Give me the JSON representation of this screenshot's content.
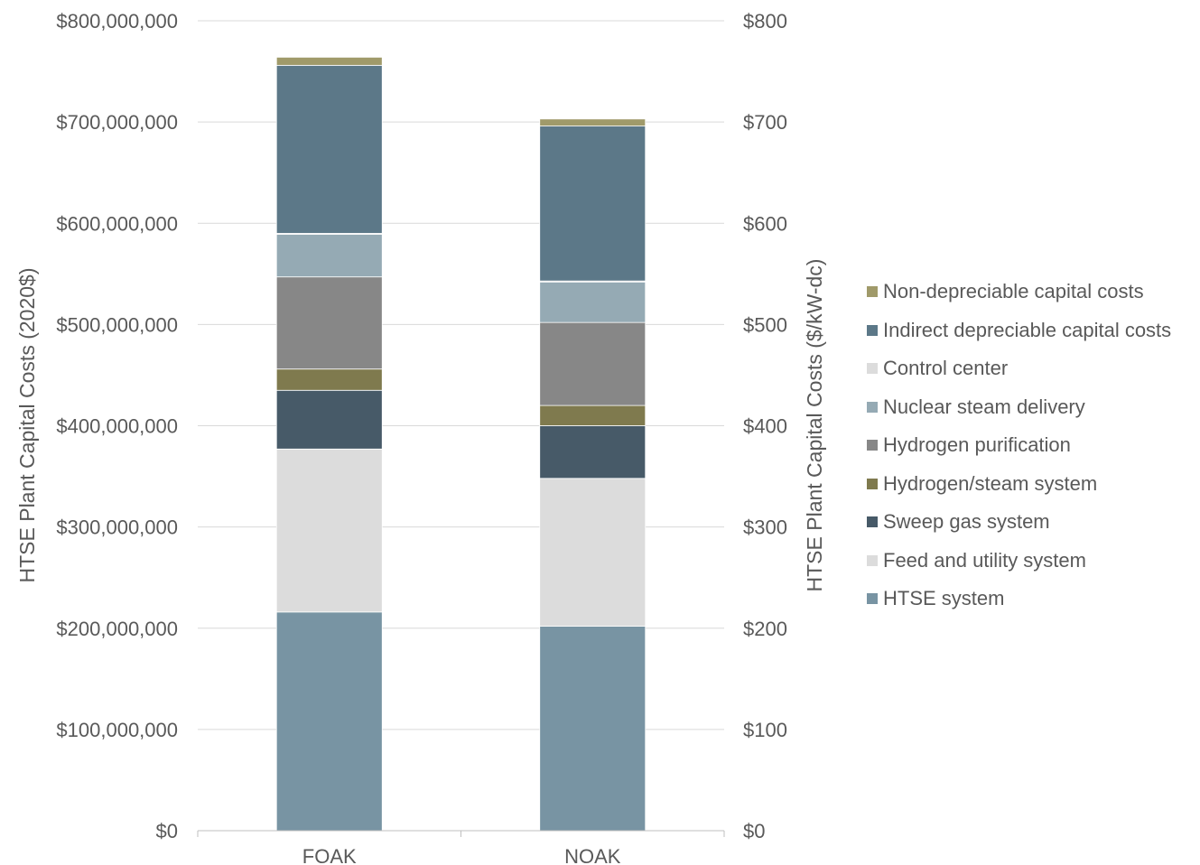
{
  "chart_data": {
    "type": "bar",
    "stacked": true,
    "categories": [
      "FOAK",
      "NOAK"
    ],
    "series": [
      {
        "name": "HTSE system",
        "color": "#7894a3",
        "values": [
          216000000,
          202000000
        ]
      },
      {
        "name": "Feed and utility system",
        "color": "#dcdcdc",
        "values": [
          161000000,
          146000000
        ]
      },
      {
        "name": "Sweep gas system",
        "color": "#475a68",
        "values": [
          58000000,
          52000000
        ]
      },
      {
        "name": "Hydrogen/steam system",
        "color": "#7f7a4e",
        "values": [
          21000000,
          20000000
        ]
      },
      {
        "name": "Hydrogen purification",
        "color": "#878787",
        "values": [
          91000000,
          82000000
        ]
      },
      {
        "name": "Nuclear steam delivery",
        "color": "#95aab4",
        "values": [
          42000000,
          40000000
        ]
      },
      {
        "name": "Control center",
        "color": "#dcdcdc",
        "values": [
          1000000,
          1000000
        ]
      },
      {
        "name": "Indirect depreciable capital costs",
        "color": "#5c7888",
        "values": [
          166000000,
          153000000
        ]
      },
      {
        "name": "Non-depreciable capital costs",
        "color": "#a09a6a",
        "values": [
          8000000,
          7000000
        ]
      }
    ],
    "ylabel": "HTSE Plant Capital Costs (2020$)",
    "ylim": [
      0,
      800000000
    ],
    "yticks": [
      "$0",
      "$100,000,000",
      "$200,000,000",
      "$300,000,000",
      "$400,000,000",
      "$500,000,000",
      "$600,000,000",
      "$700,000,000",
      "$800,000,000"
    ],
    "y2label": "HTSE Plant Capital Costs ($/kW-dc)",
    "y2lim": [
      0,
      800
    ],
    "y2ticks": [
      "$0",
      "$100",
      "$200",
      "$300",
      "$400",
      "$500",
      "$600",
      "$700",
      "$800"
    ],
    "grid": true,
    "legend_position": "right"
  }
}
